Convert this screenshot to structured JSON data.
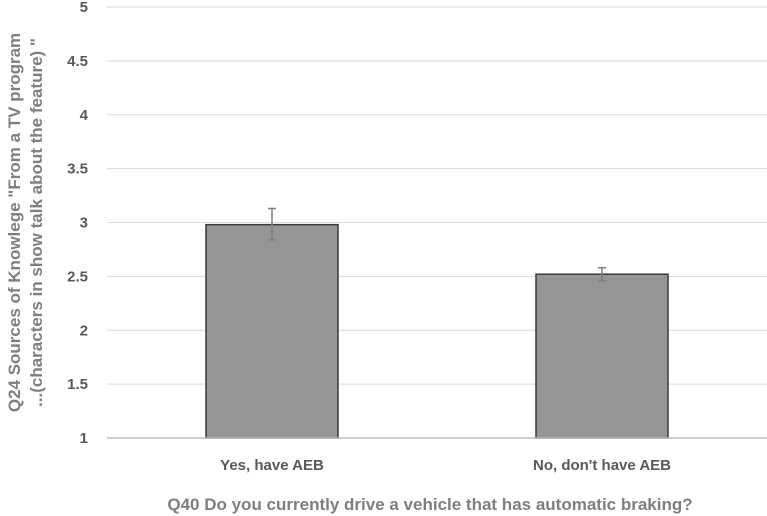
{
  "chart_data": {
    "type": "bar",
    "categories": [
      "Yes, have AEB",
      "No, don't have AEB"
    ],
    "values": [
      2.98,
      2.52
    ],
    "error_bars": [
      {
        "low": 2.84,
        "high": 3.13
      },
      {
        "low": 2.46,
        "high": 2.58
      }
    ],
    "xlabel": "Q40 Do you currently drive a vehicle that has automatic braking?",
    "ylabel_lines": [
      "Q24 Sources of Knowlege \"From a TV program",
      "...(characters in show talk about the feature) \""
    ],
    "ylim": [
      1,
      5
    ],
    "yticks": [
      1,
      1.5,
      2,
      2.5,
      3,
      3.5,
      4,
      4.5,
      5
    ],
    "ytick_labels": [
      "1",
      "1.5",
      "2",
      "2.5",
      "3",
      "3.5",
      "4",
      "4.5",
      "5"
    ],
    "grid": true,
    "colors": {
      "bar_fill": "#959595",
      "bar_stroke": "#3a3a3a",
      "grid": "#d9d9d9",
      "axis": "#bfbfbf",
      "error_bar": "#7f7f7f"
    }
  }
}
